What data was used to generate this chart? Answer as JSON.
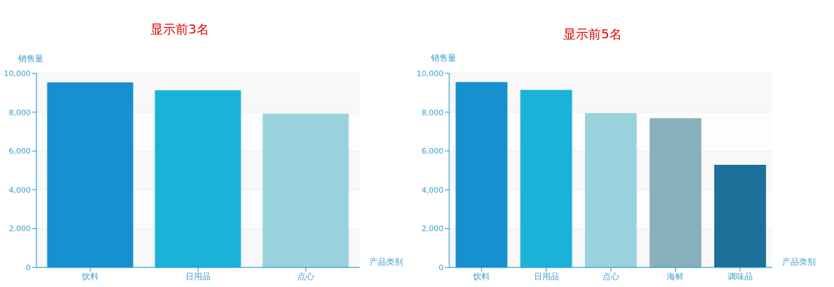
{
  "chart_data": [
    {
      "type": "bar",
      "title": "显示前3名",
      "xlabel": "产品类别",
      "ylabel": "销售量",
      "categories": [
        "饮料",
        "日用品",
        "点心"
      ],
      "values": [
        9530,
        9130,
        7920
      ],
      "colors": [
        "#1790cf",
        "#1bb2d8",
        "#99d2dd"
      ],
      "ylim": [
        0,
        10000
      ],
      "yticks": [
        0,
        {
          "value": 2000,
          "label": "2,000"
        },
        {
          "value": 4000,
          "label": "4,000"
        },
        {
          "value": 6000,
          "label": "6,000"
        },
        {
          "value": 8000,
          "label": "8,000"
        },
        {
          "value": 10000,
          "label": "10,000"
        }
      ],
      "grid": "y",
      "legend": false
    },
    {
      "type": "bar",
      "title": "显示前5名",
      "xlabel": "产品类别",
      "ylabel": "销售量",
      "categories": [
        "饮料",
        "日用品",
        "点心",
        "海鲜",
        "调味品"
      ],
      "values": [
        9550,
        9150,
        7950,
        7690,
        5290
      ],
      "colors": [
        "#1790cf",
        "#1bb2d8",
        "#99d2dd",
        "#88b0bb",
        "#1c7099"
      ],
      "ylim": [
        0,
        10000
      ],
      "yticks": [
        0,
        {
          "value": 2000,
          "label": "2,000"
        },
        {
          "value": 4000,
          "label": "4,000"
        },
        {
          "value": 6000,
          "label": "6,000"
        },
        {
          "value": 8000,
          "label": "8,000"
        },
        {
          "value": 10000,
          "label": "10,000"
        }
      ],
      "grid": "y",
      "legend": false
    }
  ]
}
